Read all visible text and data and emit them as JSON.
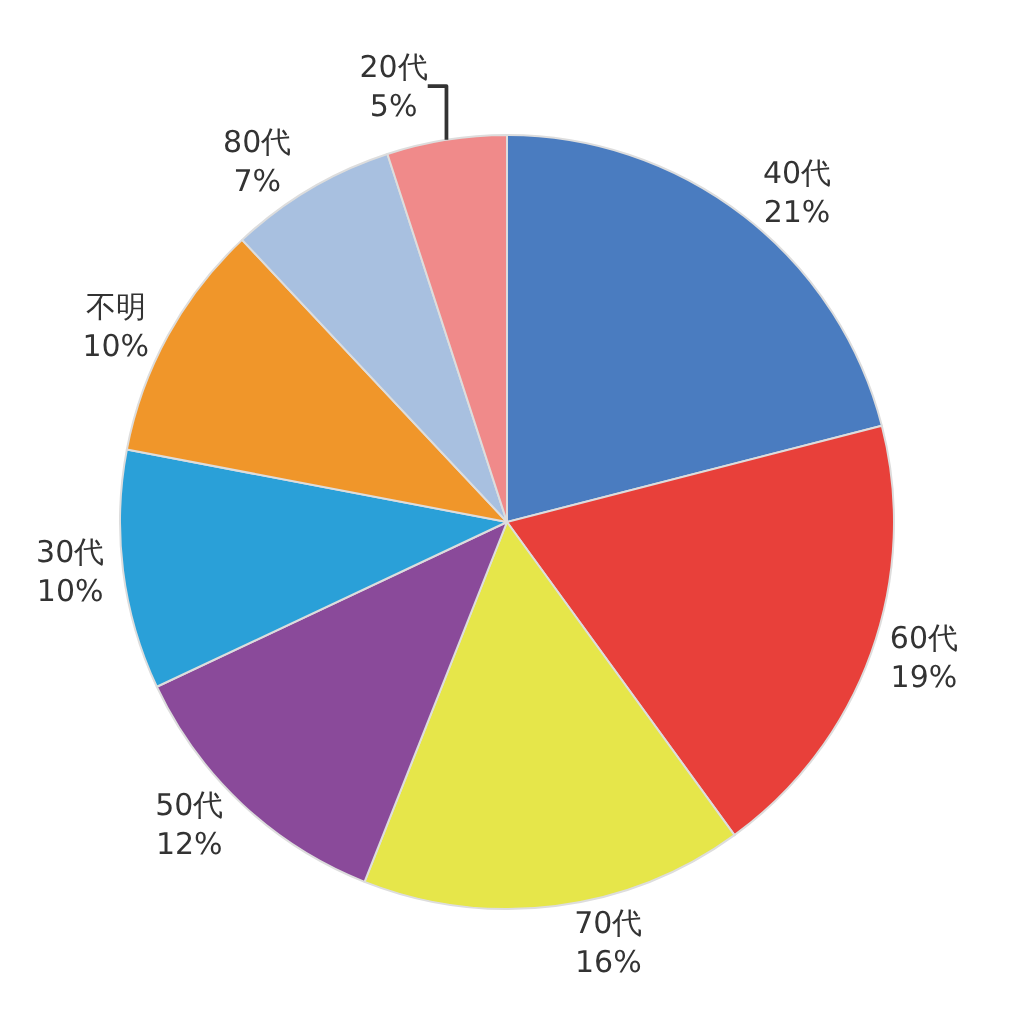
{
  "chart_data": {
    "type": "pie",
    "categories": [
      "40代",
      "60代",
      "70代",
      "50代",
      "30代",
      "不明",
      "80代",
      "20代"
    ],
    "values": [
      21,
      19,
      16,
      12,
      10,
      10,
      7,
      5
    ],
    "value_labels": [
      "21%",
      "19%",
      "16%",
      "12%",
      "10%",
      "10%",
      "7%",
      "5%"
    ],
    "colors": [
      "#4a7cc0",
      "#e8403a",
      "#e6e64a",
      "#8a4a9a",
      "#2aa0d8",
      "#f0962a",
      "#a8c0e0",
      "#f08a8a"
    ],
    "legend": false
  }
}
